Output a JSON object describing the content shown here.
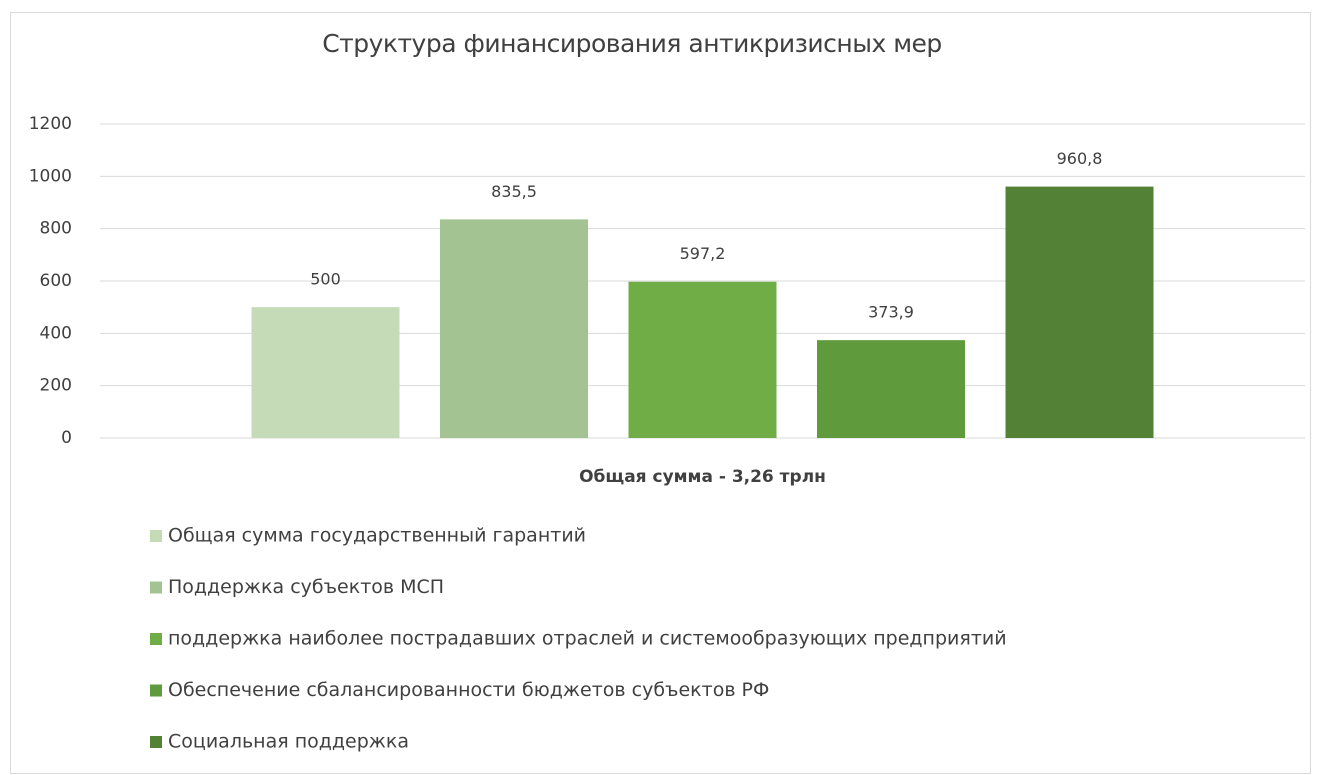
{
  "chart_data": {
    "type": "bar",
    "title": "Структура финансирования антикризисных мер",
    "categories": [
      "Общая сумма - 3,26 трлн"
    ],
    "series": [
      {
        "name": "Общая сумма государственный гарантий",
        "color": "#c5dbb8",
        "values": [
          500
        ]
      },
      {
        "name": "Поддержка субъектов МСП",
        "color": "#a3c492",
        "values": [
          835.5
        ],
        "value_labels": [
          "835,5"
        ]
      },
      {
        "name": "поддержка наиболее пострадавших отраслей и системообразующих предприятий",
        "color": "#70ad47",
        "values": [
          597.2
        ],
        "value_labels": [
          "597,2"
        ]
      },
      {
        "name": "Обеспечение сбалансированности бюджетов субъектов РФ",
        "color": "#5f9a3c",
        "values": [
          373.9
        ],
        "value_labels": [
          "373,9"
        ]
      },
      {
        "name": "Социальная поддержка",
        "color": "#538135",
        "values": [
          960.8
        ],
        "value_labels": [
          "960,8"
        ]
      }
    ],
    "ylim": [
      0,
      1200
    ],
    "yticks": [
      0,
      200,
      400,
      600,
      800,
      1000,
      1200
    ],
    "grid": true,
    "legend": "bottom"
  }
}
